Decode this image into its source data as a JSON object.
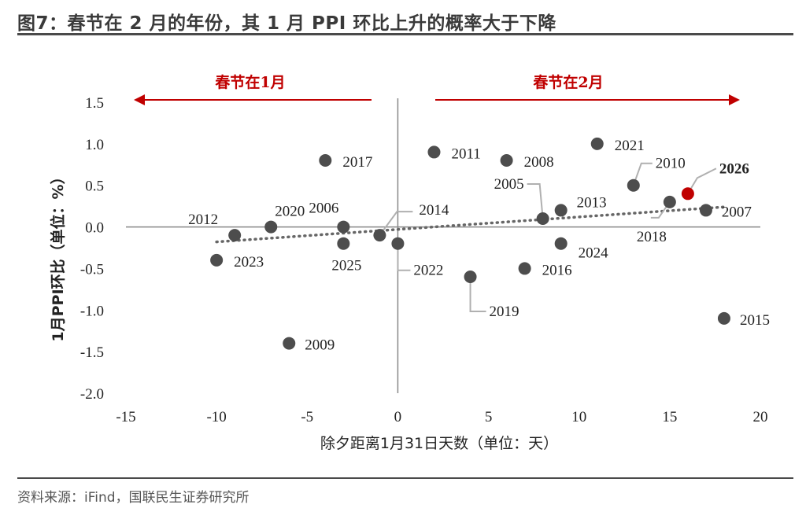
{
  "figure": {
    "title": "图7：春节在 2 月的年份，其 1 月 PPI 环比上升的概率大于下降",
    "source": "资料来源：iFind，国联民生证券研究所"
  },
  "colors": {
    "point": "#4d4d4d",
    "highlight": "#c00000",
    "arrow": "#c00000",
    "axis": "#888888",
    "trend": "#666666",
    "text": "#222222"
  },
  "chart_data": {
    "type": "scatter",
    "title": "",
    "xlabel": "除夕距离1月31日天数（单位：天）",
    "ylabel": "1月PPI环比（单位：%）",
    "xlim": [
      -15,
      20
    ],
    "ylim": [
      -2.0,
      1.5
    ],
    "xticks": [
      -15,
      -10,
      -5,
      0,
      5,
      10,
      15,
      20
    ],
    "yticks": [
      1.5,
      1.0,
      0.5,
      0.0,
      -0.5,
      -1.0,
      -1.5,
      -2.0
    ],
    "ytick_labels": [
      "1.5",
      "1.0",
      "0.5",
      "0.0",
      "-0.5",
      "-1.0",
      "-1.5",
      "-2.0"
    ],
    "annotations": {
      "left_arrow": "春节在1月",
      "right_arrow": "春节在2月"
    },
    "trendline": {
      "x": [
        -10,
        18
      ],
      "y": [
        -0.18,
        0.24
      ]
    },
    "points": [
      {
        "year": "2012",
        "x": -9,
        "y": -0.1
      },
      {
        "year": "2023",
        "x": -10,
        "y": -0.4
      },
      {
        "year": "2020",
        "x": -7,
        "y": 0.0
      },
      {
        "year": "2009",
        "x": -6,
        "y": -1.4
      },
      {
        "year": "2017",
        "x": -4,
        "y": 0.8
      },
      {
        "year": "2025",
        "x": -3,
        "y": -0.2
      },
      {
        "year": "2006",
        "x": -3,
        "y": 0.0
      },
      {
        "year": "2014",
        "x": -1,
        "y": -0.1
      },
      {
        "year": "2022",
        "x": 0,
        "y": -0.2
      },
      {
        "year": "2011",
        "x": 2,
        "y": 0.9
      },
      {
        "year": "2019",
        "x": 4,
        "y": -0.6
      },
      {
        "year": "2008",
        "x": 6,
        "y": 0.8
      },
      {
        "year": "2016",
        "x": 7,
        "y": -0.5
      },
      {
        "year": "2005",
        "x": 8,
        "y": 0.1
      },
      {
        "year": "2013",
        "x": 9,
        "y": 0.2
      },
      {
        "year": "2024",
        "x": 9,
        "y": -0.2
      },
      {
        "year": "2021",
        "x": 11,
        "y": 1.0
      },
      {
        "year": "2010",
        "x": 13,
        "y": 0.5
      },
      {
        "year": "2018",
        "x": 15,
        "y": 0.3
      },
      {
        "year": "2026",
        "x": 16,
        "y": 0.4,
        "highlight": true
      },
      {
        "year": "2007",
        "x": 17,
        "y": 0.2
      },
      {
        "year": "2015",
        "x": 18,
        "y": -1.1
      }
    ]
  }
}
